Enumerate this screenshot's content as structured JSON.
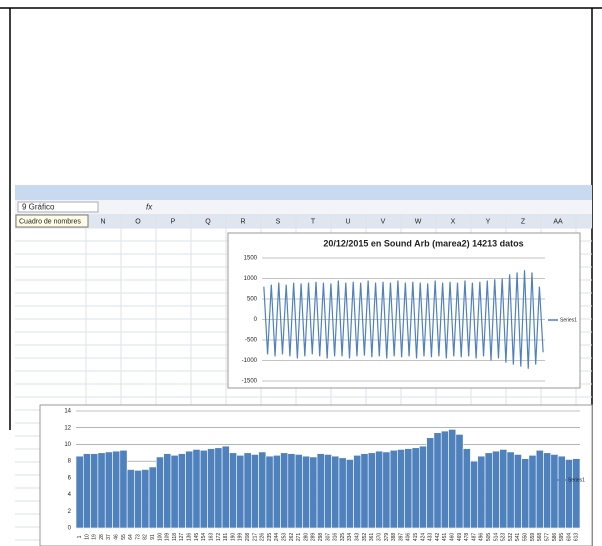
{
  "ui": {
    "name_box": "9 Gráfico",
    "fx": "fx",
    "tooltip": "Cuadro de nombres",
    "columns": [
      "N",
      "O",
      "P",
      "Q",
      "R",
      "S",
      "T",
      "U",
      "V",
      "W",
      "X",
      "Y",
      "Z",
      "AA"
    ]
  },
  "chart_data": [
    {
      "type": "line",
      "title": "20/12/2015  en Sound Arb (marea2) 14213 datos",
      "color": "#4f81bd",
      "series": [
        {
          "name": "Series1",
          "color": "#4f81bd",
          "values": [
            800,
            -850,
            850,
            -900,
            900,
            -850,
            850,
            -900,
            900,
            -950,
            880,
            -900,
            900,
            -850,
            920,
            -900,
            900,
            -950,
            880,
            -900,
            950,
            -900,
            900,
            -950,
            920,
            -900,
            900,
            -880,
            950,
            -920,
            900,
            -900,
            920,
            -950,
            900,
            -900,
            950,
            -920,
            900,
            -900,
            920,
            -950,
            900,
            -900,
            880,
            -920,
            950,
            -900,
            900,
            -950,
            920,
            -900,
            900,
            -920,
            950,
            -900,
            900,
            -950,
            920,
            -900,
            950,
            -1000,
            980,
            -950,
            1000,
            -1050,
            1100,
            -1100,
            1150,
            -1150,
            1200,
            -1200,
            1150,
            -1100,
            800,
            -800
          ]
        }
      ],
      "ylim": [
        -1500,
        1500
      ],
      "yticks": [
        -1500,
        -1000,
        -500,
        0,
        500,
        1000,
        1500
      ],
      "grid": true,
      "legend": "right"
    },
    {
      "type": "bar",
      "color": "#4f81bd",
      "categories": [
        1,
        10,
        19,
        28,
        37,
        46,
        55,
        64,
        73,
        82,
        91,
        100,
        109,
        118,
        127,
        136,
        145,
        154,
        163,
        172,
        181,
        190,
        199,
        208,
        217,
        226,
        235,
        244,
        253,
        262,
        271,
        280,
        289,
        298,
        307,
        316,
        325,
        334,
        343,
        352,
        361,
        370,
        379,
        388,
        397,
        406,
        415,
        424,
        433,
        442,
        451,
        460,
        469,
        478,
        487,
        496,
        505,
        514,
        523,
        532,
        541,
        550,
        559,
        568,
        577,
        586,
        595,
        604,
        613
      ],
      "series": [
        {
          "name": "Series1",
          "color": "#4f81bd",
          "values": [
            8.6,
            8.9,
            8.9,
            9.0,
            9.1,
            9.2,
            9.3,
            7.0,
            6.9,
            7.0,
            7.3,
            8.5,
            8.9,
            8.7,
            8.9,
            9.2,
            9.4,
            9.3,
            9.5,
            9.6,
            9.8,
            9.0,
            8.7,
            9.0,
            8.8,
            9.1,
            8.6,
            8.7,
            9.0,
            8.9,
            8.8,
            8.6,
            8.5,
            8.9,
            8.8,
            8.6,
            8.4,
            8.2,
            8.7,
            8.9,
            9.0,
            9.2,
            9.1,
            9.3,
            9.4,
            9.5,
            9.6,
            9.8,
            10.8,
            11.4,
            11.6,
            11.8,
            11.2,
            9.5,
            8.0,
            8.6,
            9.0,
            9.2,
            9.4,
            9.1,
            8.8,
            8.3,
            8.7,
            9.3,
            9.0,
            8.8,
            8.6,
            8.2,
            8.3
          ]
        }
      ],
      "ylim": [
        0,
        14
      ],
      "yticks": [
        0,
        2,
        4,
        6,
        8,
        10,
        12,
        14
      ],
      "grid": true,
      "legend": "right"
    }
  ]
}
